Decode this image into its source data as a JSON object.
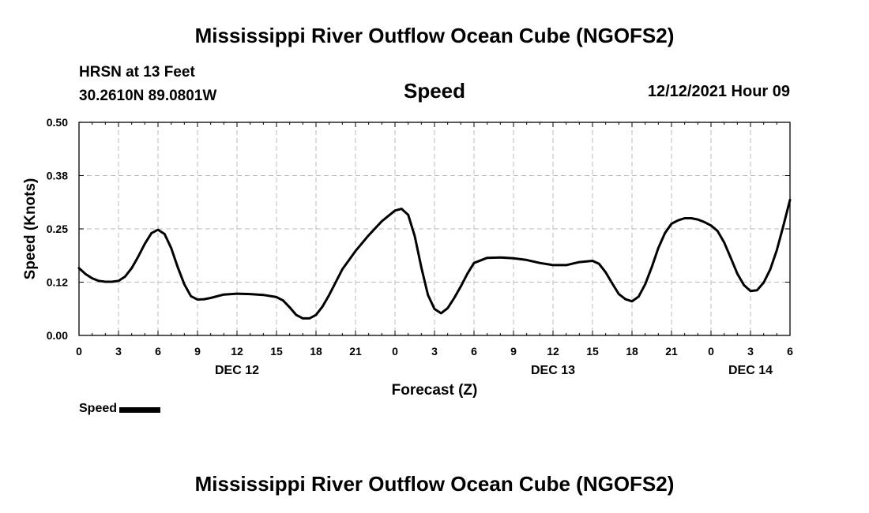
{
  "page": {
    "title": "Mississippi River Outflow Ocean Cube (NGOFS2)",
    "bottom_title": "Mississippi River Outflow Ocean Cube (NGOFS2)"
  },
  "station": {
    "name": "HRSN at 13 Feet",
    "coords": "30.2610N  89.0801W"
  },
  "variable_title": "Speed",
  "datetime": "12/12/2021 Hour 09",
  "legend": {
    "label": "Speed",
    "color": "#000000"
  },
  "chart_data": {
    "type": "line",
    "title": "Speed",
    "xlabel": "Forecast (Z)",
    "ylabel": "Speed (Knots)",
    "x_unit": "hours from 00Z Dec 12, 2021",
    "xlim": [
      0,
      54
    ],
    "ylim": [
      0,
      0.5
    ],
    "grid": true,
    "legend_position": "bottom-left",
    "y_ticks": [
      "0.00",
      "0.12",
      "0.25",
      "0.38",
      "0.50"
    ],
    "y_tick_values": [
      0,
      0.125,
      0.25,
      0.375,
      0.5
    ],
    "x_ticks": [
      {
        "x": 0,
        "label": "0"
      },
      {
        "x": 3,
        "label": "3"
      },
      {
        "x": 6,
        "label": "6"
      },
      {
        "x": 9,
        "label": "9"
      },
      {
        "x": 12,
        "label": "12"
      },
      {
        "x": 15,
        "label": "15"
      },
      {
        "x": 18,
        "label": "18"
      },
      {
        "x": 21,
        "label": "21"
      },
      {
        "x": 24,
        "label": "0"
      },
      {
        "x": 27,
        "label": "3"
      },
      {
        "x": 30,
        "label": "6"
      },
      {
        "x": 33,
        "label": "9"
      },
      {
        "x": 36,
        "label": "12"
      },
      {
        "x": 39,
        "label": "15"
      },
      {
        "x": 42,
        "label": "18"
      },
      {
        "x": 45,
        "label": "21"
      },
      {
        "x": 48,
        "label": "0"
      },
      {
        "x": 51,
        "label": "3"
      },
      {
        "x": 54,
        "label": "6"
      }
    ],
    "date_labels": [
      {
        "x": 12,
        "label": "DEC 12"
      },
      {
        "x": 36,
        "label": "DEC 13"
      },
      {
        "x": 51,
        "label": "DEC 14"
      }
    ],
    "series": [
      {
        "name": "Speed",
        "color": "#000000",
        "x": [
          0,
          0.5,
          1,
          1.5,
          2,
          2.5,
          3,
          3.5,
          4,
          4.5,
          5,
          5.5,
          6,
          6.5,
          7,
          7.5,
          8,
          8.5,
          9,
          9.5,
          10,
          11,
          12,
          13,
          14,
          15,
          15.5,
          16,
          16.5,
          17,
          17.5,
          18,
          18.5,
          19,
          19.5,
          20,
          21,
          22,
          23,
          24,
          24.5,
          25,
          25.5,
          26,
          26.5,
          27,
          27.5,
          28,
          28.5,
          29,
          29.5,
          30,
          31,
          32,
          33,
          34,
          35,
          36,
          37,
          38,
          39,
          39.5,
          40,
          40.5,
          41,
          41.5,
          42,
          42.5,
          43,
          43.5,
          44,
          44.5,
          45,
          45.5,
          46,
          46.5,
          47,
          47.5,
          48,
          48.5,
          49,
          49.5,
          50,
          50.5,
          51,
          51.5,
          52,
          52.5,
          53,
          53.5,
          54
        ],
        "y": [
          0.158,
          0.144,
          0.134,
          0.128,
          0.126,
          0.126,
          0.128,
          0.138,
          0.158,
          0.185,
          0.215,
          0.24,
          0.248,
          0.238,
          0.205,
          0.16,
          0.12,
          0.092,
          0.084,
          0.085,
          0.088,
          0.096,
          0.098,
          0.097,
          0.095,
          0.09,
          0.082,
          0.066,
          0.048,
          0.04,
          0.04,
          0.048,
          0.068,
          0.095,
          0.125,
          0.155,
          0.198,
          0.235,
          0.268,
          0.293,
          0.297,
          0.283,
          0.233,
          0.16,
          0.095,
          0.062,
          0.052,
          0.064,
          0.088,
          0.115,
          0.145,
          0.17,
          0.182,
          0.183,
          0.181,
          0.177,
          0.17,
          0.165,
          0.165,
          0.172,
          0.175,
          0.168,
          0.148,
          0.122,
          0.097,
          0.085,
          0.08,
          0.091,
          0.12,
          0.16,
          0.205,
          0.24,
          0.262,
          0.27,
          0.275,
          0.275,
          0.272,
          0.266,
          0.258,
          0.245,
          0.218,
          0.182,
          0.145,
          0.118,
          0.104,
          0.106,
          0.124,
          0.155,
          0.2,
          0.258,
          0.318
        ]
      }
    ]
  }
}
